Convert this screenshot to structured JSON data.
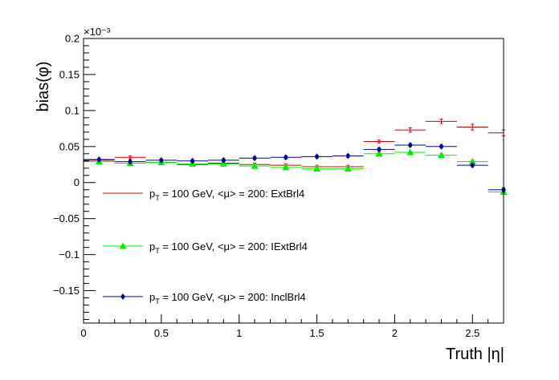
{
  "chart_data": {
    "type": "scatter",
    "ylabel": "bias(φ)",
    "xlabel": "Truth |η|",
    "y_multiplier": "×10⁻³",
    "xlim": [
      0,
      2.7
    ],
    "ylim": [
      -0.195,
      0.2
    ],
    "x_major_ticks": [
      0,
      0.5,
      1,
      1.5,
      2,
      2.5
    ],
    "x_tick_labels": [
      "0",
      "0.5",
      "1",
      "1.5",
      "2",
      "2.5"
    ],
    "y_major_ticks": [
      -0.15,
      -0.1,
      -0.05,
      0,
      0.05,
      0.1,
      0.15,
      0.2
    ],
    "y_tick_labels": [
      "−0.15",
      "−0.1",
      "−0.05",
      "0",
      "0.05",
      "0.1",
      "0.15",
      "0.2"
    ],
    "grid": false,
    "legend_position": "left",
    "x_bin_edges": [
      0,
      0.2,
      0.4,
      0.6,
      0.8,
      1.0,
      1.2,
      1.4,
      1.6,
      1.8,
      2.0,
      2.2,
      2.4,
      2.6,
      2.8
    ],
    "x": [
      0.1,
      0.3,
      0.5,
      0.7,
      0.9,
      1.1,
      1.3,
      1.5,
      1.7,
      1.9,
      2.1,
      2.3,
      2.5,
      2.7
    ],
    "series": [
      {
        "name": "ExtBrl4",
        "legend": "p_T = 100 GeV, <μ> = 200: ExtBrl4",
        "color": "#cc0000",
        "marker": "none",
        "values": [
          0.031,
          0.035,
          0.028,
          0.025,
          0.027,
          0.025,
          0.024,
          0.022,
          0.022,
          0.057,
          0.073,
          0.085,
          0.077,
          0.069
        ],
        "errors": [
          0.002,
          0.002,
          0.002,
          0.002,
          0.002,
          0.002,
          0.002,
          0.002,
          0.002,
          0.002,
          0.003,
          0.003,
          0.004,
          0.004
        ]
      },
      {
        "name": "IExtBrl4",
        "legend": "p_T = 100 GeV, <μ> = 200: IExtBrl4",
        "color": "#00ee00",
        "marker": "triangle",
        "values": [
          0.029,
          0.027,
          0.028,
          0.026,
          0.026,
          0.023,
          0.021,
          0.019,
          0.019,
          0.04,
          0.042,
          0.038,
          0.029,
          -0.013
        ],
        "errors": [
          0.002,
          0.002,
          0.002,
          0.002,
          0.002,
          0.002,
          0.002,
          0.002,
          0.002,
          0.002,
          0.002,
          0.002,
          0.002,
          0.003
        ]
      },
      {
        "name": "InclBrl4",
        "legend": "p_T = 100 GeV, <μ> = 200: InclBrl4",
        "color": "#000099",
        "marker": "diamond",
        "values": [
          0.032,
          0.029,
          0.031,
          0.03,
          0.031,
          0.034,
          0.035,
          0.036,
          0.037,
          0.046,
          0.052,
          0.05,
          0.024,
          -0.01
        ],
        "errors": [
          0.002,
          0.002,
          0.002,
          0.002,
          0.002,
          0.002,
          0.002,
          0.002,
          0.002,
          0.002,
          0.002,
          0.002,
          0.002,
          0.003
        ]
      }
    ]
  }
}
